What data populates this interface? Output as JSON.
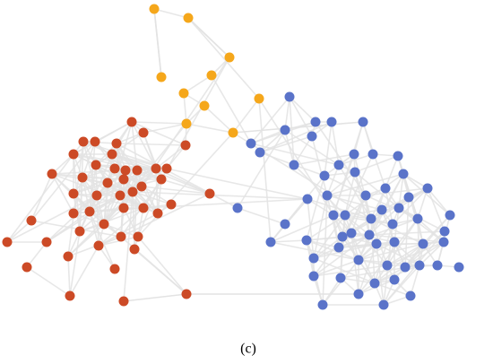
{
  "caption": "(c)"
}
